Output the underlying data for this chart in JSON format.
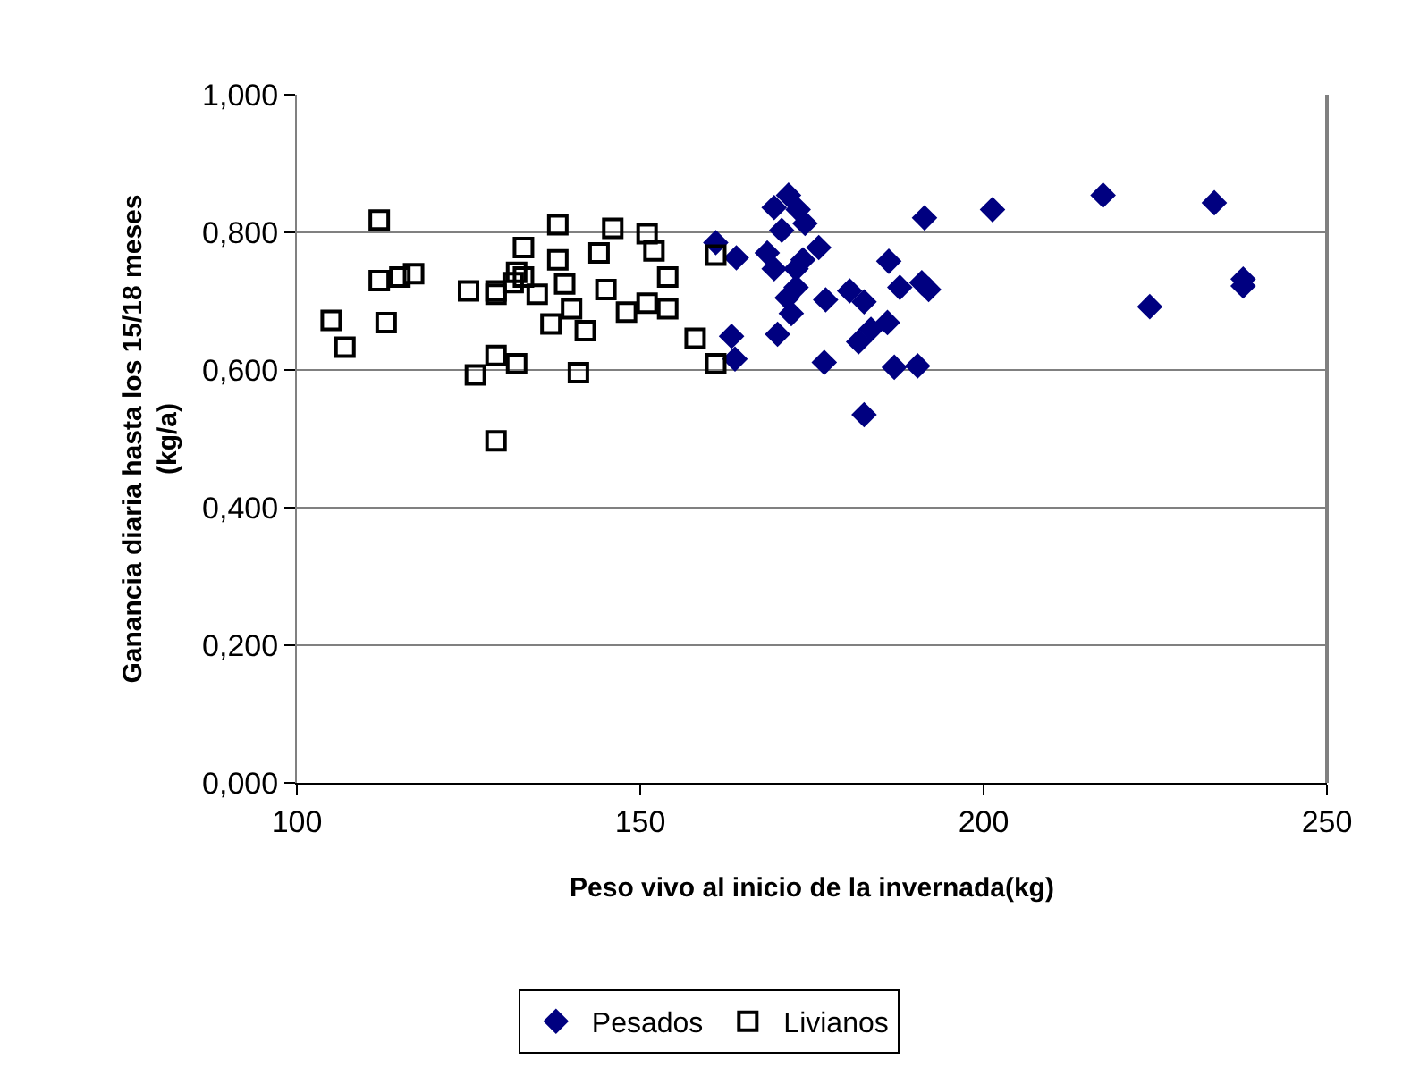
{
  "chart_data": {
    "type": "scatter",
    "xlabel": "Peso vivo al inicio de la invernada(kg)",
    "ylabel": "Ganancia diaria hasta los 15/18 meses\n(kg/a)",
    "xlim": [
      100,
      250
    ],
    "xticks": [
      100,
      150,
      200,
      250
    ],
    "ylim": [
      0,
      1
    ],
    "yticks": [
      {
        "value": 0,
        "label": "0,000"
      },
      {
        "value": 0.2,
        "label": "0,200"
      },
      {
        "value": 0.4,
        "label": "0,400"
      },
      {
        "value": 0.6,
        "label": "0,600"
      },
      {
        "value": 0.8,
        "label": "0,800"
      },
      {
        "value": 1,
        "label": "1,000"
      }
    ],
    "grid": "y",
    "legend": "bottom",
    "series": [
      {
        "name": "Pesados",
        "color": "#000080",
        "marker": "diamond",
        "x": [
          171.6,
          169.5,
          173,
          174,
          170.6,
          176,
          161,
          164,
          168.5,
          173.7,
          169.5,
          172.7,
          172.7,
          171.4,
          172,
          177,
          170,
          163.3,
          163.8,
          176.8,
          180.5,
          182.6,
          181.8,
          183.6,
          186,
          182.6,
          186.2,
          187.8,
          191,
          192,
          187,
          190.4,
          191.4,
          201.3,
          217.4,
          233.6,
          224.2,
          237.8,
          237.8
        ],
        "values": [
          0.854,
          0.836,
          0.833,
          0.813,
          0.803,
          0.778,
          0.785,
          0.763,
          0.77,
          0.76,
          0.747,
          0.747,
          0.72,
          0.705,
          0.682,
          0.702,
          0.652,
          0.649,
          0.616,
          0.611,
          0.715,
          0.699,
          0.641,
          0.659,
          0.669,
          0.535,
          0.758,
          0.72,
          0.727,
          0.717,
          0.604,
          0.606,
          0.821,
          0.833,
          0.854,
          0.843,
          0.692,
          0.732,
          0.722
        ]
      },
      {
        "name": "Livianos",
        "color": "#000000",
        "marker": "square",
        "x": [
          105,
          107,
          112,
          112,
          113,
          115,
          117,
          125,
          126,
          129,
          129,
          129,
          129,
          132,
          132,
          133,
          133,
          131.5,
          135,
          137,
          138,
          138,
          139,
          140,
          141,
          142,
          144,
          145,
          146,
          148,
          151,
          151,
          152,
          154,
          154,
          158,
          161,
          161
        ],
        "values": [
          0.672,
          0.633,
          0.818,
          0.73,
          0.669,
          0.735,
          0.74,
          0.715,
          0.593,
          0.715,
          0.71,
          0.497,
          0.621,
          0.609,
          0.742,
          0.778,
          0.735,
          0.727,
          0.71,
          0.667,
          0.811,
          0.76,
          0.725,
          0.689,
          0.596,
          0.657,
          0.77,
          0.717,
          0.806,
          0.684,
          0.798,
          0.697,
          0.773,
          0.735,
          0.689,
          0.646,
          0.609,
          0.767
        ]
      }
    ]
  }
}
